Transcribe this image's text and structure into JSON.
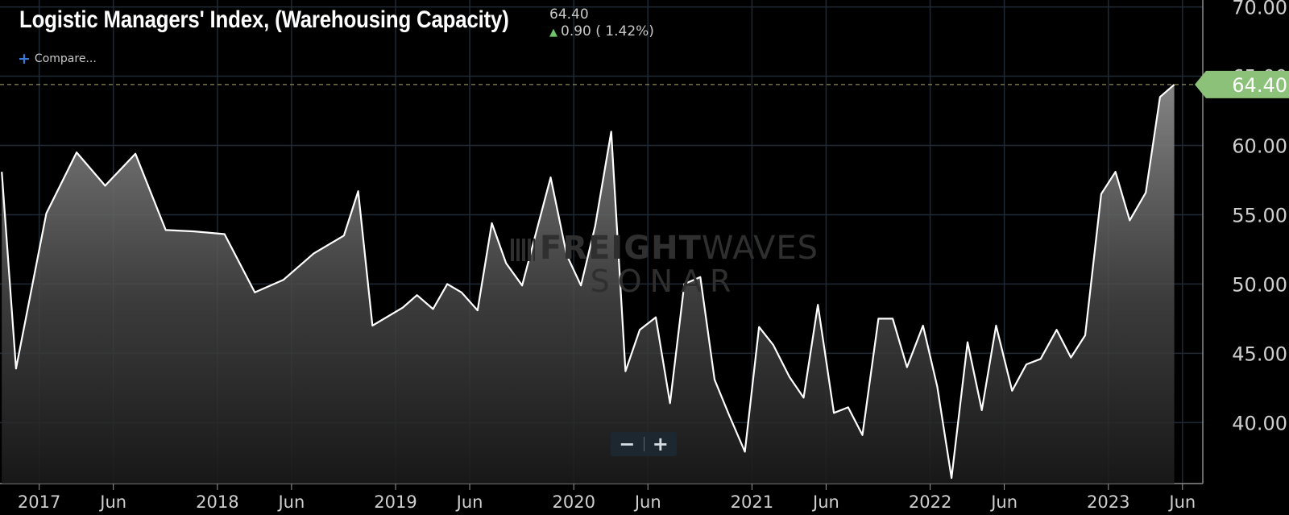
{
  "header": {
    "title": "Logistic Managers' Index, (Warehousing Capacity)",
    "last_value": "64.40",
    "change": "0.90",
    "change_pct": "( 1.42%)",
    "compare_label": "Compare..."
  },
  "watermark": {
    "line1_bold": "FREIGHT",
    "line1_light": "WAVES",
    "line2": "SONAR"
  },
  "zoom": {
    "minus": "−",
    "plus": "+"
  },
  "colors": {
    "background": "#000000",
    "line": "#ffffff",
    "grid": "#1f2a35",
    "last_price_badge": "#8cc17a",
    "up_arrow": "#6fc56a"
  },
  "chart_data": {
    "type": "area",
    "title": "Logistic Managers' Index, (Warehousing Capacity)",
    "xlabel": "",
    "ylabel": "",
    "ylim": [
      35.6,
      70.5
    ],
    "yticks": [
      40,
      45,
      50,
      55,
      60,
      65,
      70
    ],
    "ytick_labels": [
      "40.00",
      "45.00",
      "50.00",
      "55.00",
      "60.00",
      "65.00",
      "70.00"
    ],
    "xticks": [
      {
        "label": "2017",
        "t": 2017.0
      },
      {
        "label": "Jun",
        "t": 2017.416
      },
      {
        "label": "2018",
        "t": 2018.0
      },
      {
        "label": "Jun",
        "t": 2018.416
      },
      {
        "label": "2019",
        "t": 2019.0
      },
      {
        "label": "Jun",
        "t": 2019.416
      },
      {
        "label": "2020",
        "t": 2020.0
      },
      {
        "label": "Jun",
        "t": 2020.416
      },
      {
        "label": "2021",
        "t": 2021.0
      },
      {
        "label": "Jun",
        "t": 2021.416
      },
      {
        "label": "2022",
        "t": 2022.0
      },
      {
        "label": "Jun",
        "t": 2022.416
      },
      {
        "label": "2023",
        "t": 2023.0
      },
      {
        "label": "Jun",
        "t": 2023.416
      }
    ],
    "xlim": [
      2016.78,
      2023.53
    ],
    "last_value_label": "64.40",
    "reference_line": 64.4,
    "series": [
      {
        "name": "Warehousing Capacity",
        "points": [
          [
            2016.79,
            58.1
          ],
          [
            2016.87,
            43.9
          ],
          [
            2017.04,
            55.1
          ],
          [
            2017.21,
            59.5
          ],
          [
            2017.37,
            57.1
          ],
          [
            2017.54,
            59.4
          ],
          [
            2017.71,
            53.9
          ],
          [
            2017.87,
            53.8
          ],
          [
            2018.04,
            53.6
          ],
          [
            2018.21,
            49.4
          ],
          [
            2018.37,
            50.3
          ],
          [
            2018.54,
            52.2
          ],
          [
            2018.71,
            53.5
          ],
          [
            2018.79,
            56.7
          ],
          [
            2018.87,
            47.0
          ],
          [
            2019.04,
            48.3
          ],
          [
            2019.12,
            49.2
          ],
          [
            2019.21,
            48.2
          ],
          [
            2019.29,
            50.0
          ],
          [
            2019.37,
            49.4
          ],
          [
            2019.46,
            48.1
          ],
          [
            2019.54,
            54.4
          ],
          [
            2019.62,
            51.5
          ],
          [
            2019.71,
            49.9
          ],
          [
            2019.79,
            53.8
          ],
          [
            2019.87,
            57.7
          ],
          [
            2019.96,
            52.1
          ],
          [
            2020.04,
            49.9
          ],
          [
            2020.12,
            54.2
          ],
          [
            2020.21,
            61.0
          ],
          [
            2020.29,
            43.7
          ],
          [
            2020.37,
            46.7
          ],
          [
            2020.46,
            47.6
          ],
          [
            2020.54,
            41.4
          ],
          [
            2020.62,
            50.0
          ],
          [
            2020.71,
            50.5
          ],
          [
            2020.79,
            43.1
          ],
          [
            2020.87,
            40.6
          ],
          [
            2020.96,
            37.9
          ],
          [
            2021.04,
            46.9
          ],
          [
            2021.12,
            45.6
          ],
          [
            2021.21,
            43.3
          ],
          [
            2021.29,
            41.8
          ],
          [
            2021.37,
            48.5
          ],
          [
            2021.46,
            40.7
          ],
          [
            2021.54,
            41.1
          ],
          [
            2021.62,
            39.1
          ],
          [
            2021.71,
            47.5
          ],
          [
            2021.79,
            47.5
          ],
          [
            2021.87,
            44.0
          ],
          [
            2021.96,
            47.0
          ],
          [
            2022.04,
            42.6
          ],
          [
            2022.12,
            36.0
          ],
          [
            2022.21,
            45.8
          ],
          [
            2022.29,
            40.9
          ],
          [
            2022.37,
            47.0
          ],
          [
            2022.46,
            42.3
          ],
          [
            2022.54,
            44.2
          ],
          [
            2022.62,
            44.6
          ],
          [
            2022.71,
            46.7
          ],
          [
            2022.79,
            44.7
          ],
          [
            2022.87,
            46.3
          ],
          [
            2022.96,
            56.5
          ],
          [
            2023.04,
            58.1
          ],
          [
            2023.12,
            54.6
          ],
          [
            2023.21,
            56.6
          ],
          [
            2023.29,
            63.5
          ],
          [
            2023.37,
            64.4
          ]
        ]
      }
    ]
  }
}
